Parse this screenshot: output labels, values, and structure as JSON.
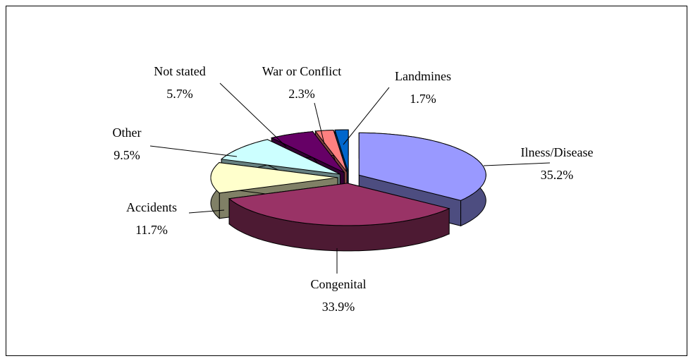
{
  "chart_data": {
    "type": "pie",
    "categories": [
      "Ilness/Disease",
      "Congenital",
      "Accidents",
      "Other",
      "Not stated",
      "War or Conflict",
      "Landmines"
    ],
    "values": [
      35.2,
      33.9,
      11.7,
      9.5,
      5.7,
      2.3,
      1.7
    ],
    "value_labels": [
      "35.2%",
      "33.9%",
      "11.7%",
      "9.5%",
      "5.7%",
      "2.3%",
      "1.7%"
    ],
    "colors": [
      "#9999ff",
      "#993366",
      "#ffffcc",
      "#ccffff",
      "#660066",
      "#ff8080",
      "#0066cc"
    ]
  }
}
